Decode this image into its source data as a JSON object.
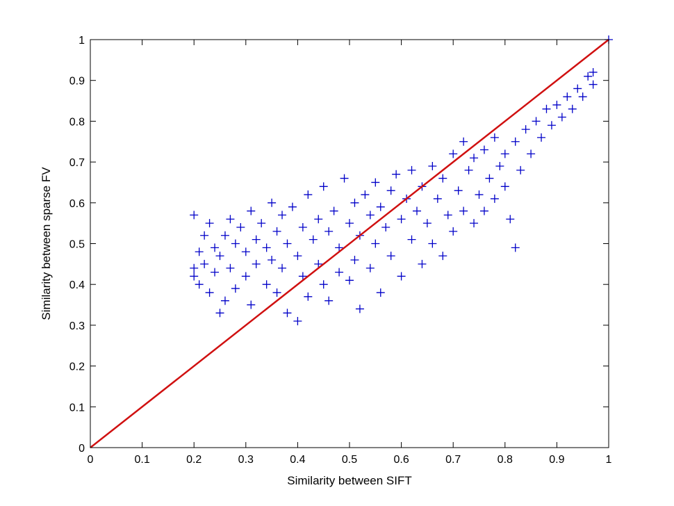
{
  "chart_data": {
    "type": "scatter",
    "title": "",
    "xlabel": "Similarity between SIFT",
    "ylabel": "Similarity between sparse FV",
    "xlim": [
      0,
      1
    ],
    "ylim": [
      0,
      1
    ],
    "xticks": [
      "0",
      "0.1",
      "0.2",
      "0.3",
      "0.4",
      "0.5",
      "0.6",
      "0.7",
      "0.8",
      "0.9",
      "1"
    ],
    "yticks": [
      "0",
      "0.1",
      "0.2",
      "0.3",
      "0.4",
      "0.5",
      "0.6",
      "0.7",
      "0.8",
      "0.9",
      "1"
    ],
    "grid": false,
    "marker": "+",
    "colors": {
      "points": "#0000c8",
      "reference_line": "#d01010",
      "axes": "#000000"
    },
    "reference_line": {
      "x": [
        0,
        1
      ],
      "y": [
        0,
        1
      ]
    },
    "series": [
      {
        "points": [
          [
            0.2,
            0.57
          ],
          [
            0.2,
            0.44
          ],
          [
            0.2,
            0.42
          ],
          [
            0.21,
            0.48
          ],
          [
            0.21,
            0.4
          ],
          [
            0.22,
            0.52
          ],
          [
            0.22,
            0.45
          ],
          [
            0.23,
            0.55
          ],
          [
            0.23,
            0.38
          ],
          [
            0.24,
            0.49
          ],
          [
            0.24,
            0.43
          ],
          [
            0.25,
            0.33
          ],
          [
            0.25,
            0.47
          ],
          [
            0.26,
            0.52
          ],
          [
            0.26,
            0.36
          ],
          [
            0.27,
            0.56
          ],
          [
            0.27,
            0.44
          ],
          [
            0.28,
            0.5
          ],
          [
            0.28,
            0.39
          ],
          [
            0.29,
            0.54
          ],
          [
            0.3,
            0.48
          ],
          [
            0.3,
            0.42
          ],
          [
            0.31,
            0.58
          ],
          [
            0.31,
            0.35
          ],
          [
            0.32,
            0.51
          ],
          [
            0.32,
            0.45
          ],
          [
            0.33,
            0.55
          ],
          [
            0.34,
            0.49
          ],
          [
            0.34,
            0.4
          ],
          [
            0.35,
            0.6
          ],
          [
            0.35,
            0.46
          ],
          [
            0.36,
            0.53
          ],
          [
            0.36,
            0.38
          ],
          [
            0.37,
            0.57
          ],
          [
            0.37,
            0.44
          ],
          [
            0.38,
            0.5
          ],
          [
            0.38,
            0.33
          ],
          [
            0.39,
            0.59
          ],
          [
            0.4,
            0.47
          ],
          [
            0.4,
            0.31
          ],
          [
            0.41,
            0.54
          ],
          [
            0.41,
            0.42
          ],
          [
            0.42,
            0.62
          ],
          [
            0.42,
            0.37
          ],
          [
            0.43,
            0.51
          ],
          [
            0.44,
            0.56
          ],
          [
            0.44,
            0.45
          ],
          [
            0.45,
            0.64
          ],
          [
            0.45,
            0.4
          ],
          [
            0.46,
            0.53
          ],
          [
            0.46,
            0.36
          ],
          [
            0.47,
            0.58
          ],
          [
            0.48,
            0.49
          ],
          [
            0.48,
            0.43
          ],
          [
            0.49,
            0.66
          ],
          [
            0.5,
            0.55
          ],
          [
            0.5,
            0.41
          ],
          [
            0.51,
            0.6
          ],
          [
            0.51,
            0.46
          ],
          [
            0.52,
            0.34
          ],
          [
            0.52,
            0.52
          ],
          [
            0.53,
            0.62
          ],
          [
            0.54,
            0.57
          ],
          [
            0.54,
            0.44
          ],
          [
            0.55,
            0.65
          ],
          [
            0.55,
            0.5
          ],
          [
            0.56,
            0.38
          ],
          [
            0.56,
            0.59
          ],
          [
            0.57,
            0.54
          ],
          [
            0.58,
            0.63
          ],
          [
            0.58,
            0.47
          ],
          [
            0.59,
            0.67
          ],
          [
            0.6,
            0.56
          ],
          [
            0.6,
            0.42
          ],
          [
            0.61,
            0.61
          ],
          [
            0.62,
            0.51
          ],
          [
            0.62,
            0.68
          ],
          [
            0.63,
            0.58
          ],
          [
            0.64,
            0.45
          ],
          [
            0.64,
            0.64
          ],
          [
            0.65,
            0.55
          ],
          [
            0.66,
            0.69
          ],
          [
            0.66,
            0.5
          ],
          [
            0.67,
            0.61
          ],
          [
            0.68,
            0.47
          ],
          [
            0.68,
            0.66
          ],
          [
            0.69,
            0.57
          ],
          [
            0.7,
            0.72
          ],
          [
            0.7,
            0.53
          ],
          [
            0.71,
            0.63
          ],
          [
            0.72,
            0.58
          ],
          [
            0.72,
            0.75
          ],
          [
            0.73,
            0.68
          ],
          [
            0.74,
            0.55
          ],
          [
            0.74,
            0.71
          ],
          [
            0.75,
            0.62
          ],
          [
            0.76,
            0.73
          ],
          [
            0.76,
            0.58
          ],
          [
            0.77,
            0.66
          ],
          [
            0.78,
            0.76
          ],
          [
            0.78,
            0.61
          ],
          [
            0.79,
            0.69
          ],
          [
            0.8,
            0.72
          ],
          [
            0.8,
            0.64
          ],
          [
            0.81,
            0.56
          ],
          [
            0.82,
            0.49
          ],
          [
            0.82,
            0.75
          ],
          [
            0.83,
            0.68
          ],
          [
            0.84,
            0.78
          ],
          [
            0.85,
            0.72
          ],
          [
            0.86,
            0.8
          ],
          [
            0.87,
            0.76
          ],
          [
            0.88,
            0.83
          ],
          [
            0.89,
            0.79
          ],
          [
            0.9,
            0.84
          ],
          [
            0.91,
            0.81
          ],
          [
            0.92,
            0.86
          ],
          [
            0.93,
            0.83
          ],
          [
            0.94,
            0.88
          ],
          [
            0.95,
            0.86
          ],
          [
            0.96,
            0.91
          ],
          [
            0.97,
            0.89
          ],
          [
            0.97,
            0.92
          ],
          [
            1.0,
            1.0
          ]
        ]
      }
    ]
  }
}
